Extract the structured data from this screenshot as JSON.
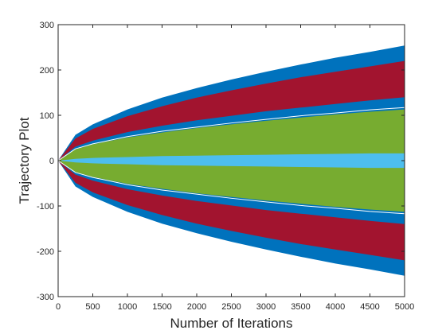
{
  "chart_data": {
    "type": "area",
    "title": "",
    "xlabel": "Number of Iterations",
    "ylabel": "Trajectory Plot",
    "xlim": [
      0,
      5000
    ],
    "ylim": [
      -300,
      300
    ],
    "xticks": [
      0,
      500,
      1000,
      1500,
      2000,
      2500,
      3000,
      3500,
      4000,
      4500,
      5000
    ],
    "yticks": [
      -300,
      -200,
      -100,
      0,
      100,
      200,
      300
    ],
    "grid": false,
    "legend": "none",
    "x": [
      0,
      250,
      500,
      1000,
      1500,
      2000,
      2500,
      3000,
      3500,
      4000,
      4500,
      5000
    ],
    "series": [
      {
        "color": "#0072BD",
        "upper": [
          0,
          57,
          80,
          113,
          139,
          160,
          179,
          196,
          212,
          227,
          240,
          254
        ],
        "lower": [
          0,
          -57,
          -80,
          -113,
          -139,
          -160,
          -179,
          -196,
          -212,
          -227,
          -240,
          -254
        ]
      },
      {
        "color": "#A2142F",
        "upper": [
          0,
          49,
          70,
          98,
          120,
          139,
          155,
          170,
          184,
          196,
          208,
          220
        ],
        "lower": [
          0,
          -49,
          -70,
          -98,
          -120,
          -139,
          -155,
          -170,
          -184,
          -196,
          -208,
          -220
        ]
      },
      {
        "color": "#0072BD",
        "upper": [
          0,
          31,
          44,
          63,
          77,
          89,
          99,
          109,
          117,
          125,
          133,
          140
        ],
        "lower": [
          0,
          -31,
          -44,
          -63,
          -77,
          -89,
          -99,
          -109,
          -117,
          -125,
          -133,
          -140
        ]
      },
      {
        "color": "#77AC30",
        "upper": [
          0,
          25,
          36,
          51,
          62,
          72,
          80,
          88,
          95,
          102,
          108,
          113
        ],
        "lower": [
          0,
          -25,
          -36,
          -51,
          -62,
          -72,
          -80,
          -88,
          -95,
          -102,
          -108,
          -113
        ]
      },
      {
        "color": "#4DBEEE",
        "upper": [
          0,
          4,
          6,
          8,
          10,
          11,
          12,
          13,
          14,
          15,
          16,
          16
        ],
        "lower": [
          0,
          -4,
          -6,
          -8,
          -10,
          -11,
          -12,
          -13,
          -14,
          -15,
          -16,
          -16
        ]
      }
    ],
    "lines": [
      {
        "color": "#FFFFFF",
        "upper": [
          0,
          26,
          37,
          53,
          65,
          74,
          83,
          91,
          99,
          105,
          112,
          117
        ],
        "lower": [
          0,
          -26,
          -37,
          -53,
          -65,
          -74,
          -83,
          -91,
          -99,
          -105,
          -112,
          -117
        ]
      }
    ],
    "axis_color": "#262626",
    "background": "#FFFFFF"
  }
}
